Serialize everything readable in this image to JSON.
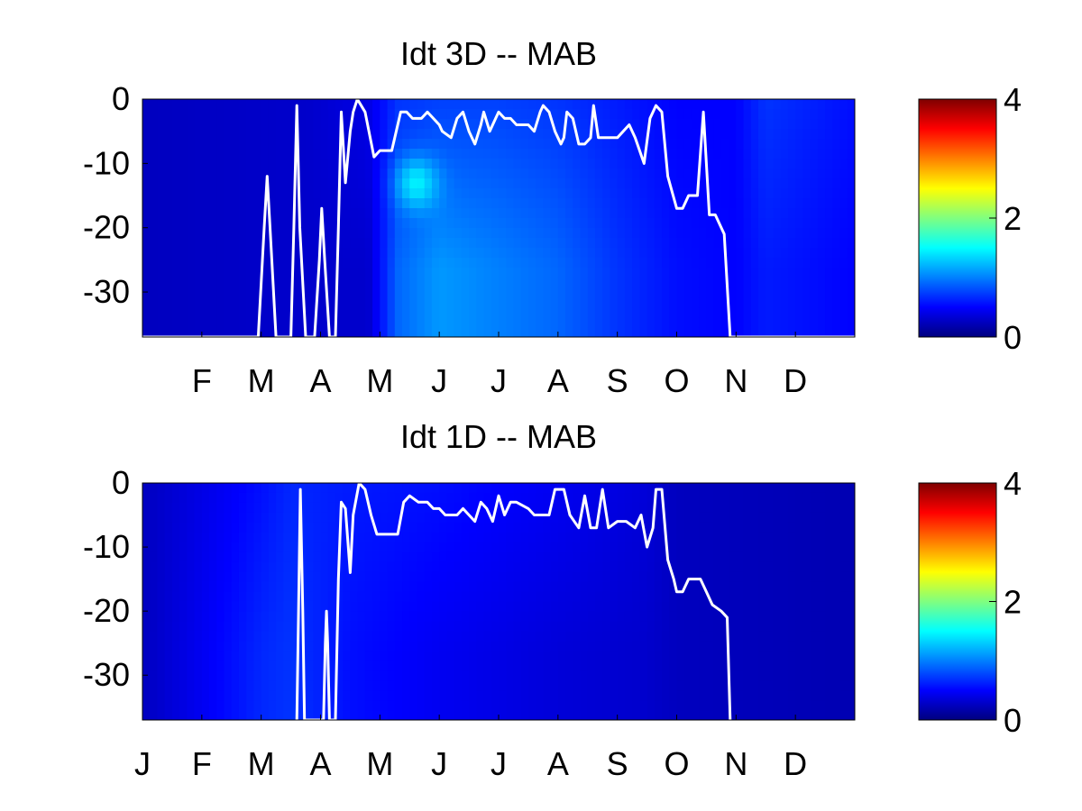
{
  "chart_data": [
    {
      "type": "heatmap",
      "title": "Idt 3D    -- MAB",
      "xlabel": "",
      "ylabel": "",
      "x_tick_labels": [
        "F",
        "M",
        "A",
        "M",
        "J",
        "J",
        "A",
        "S",
        "O",
        "N",
        "D"
      ],
      "y_ticks": [
        0,
        -10,
        -20,
        -30
      ],
      "ylim": [
        -37,
        0
      ],
      "xlim": [
        0,
        12
      ],
      "colorbar": {
        "ticks": [
          0,
          2,
          4
        ],
        "range": [
          0,
          4
        ],
        "colormap": "jet"
      },
      "grid": false,
      "heat_profile": [
        {
          "month": 0.0,
          "surface": 0.25,
          "deep": 0.25
        },
        {
          "month": 2.8,
          "surface": 0.3,
          "deep": 0.3
        },
        {
          "month": 3.8,
          "surface": 0.4,
          "deep": 0.3
        },
        {
          "month": 4.3,
          "surface": 0.7,
          "deep": 0.9
        },
        {
          "month": 5.0,
          "surface": 0.75,
          "deep": 1.1
        },
        {
          "month": 6.0,
          "surface": 0.75,
          "deep": 1.0
        },
        {
          "month": 7.0,
          "surface": 0.7,
          "deep": 0.9
        },
        {
          "month": 8.0,
          "surface": 0.6,
          "deep": 0.7
        },
        {
          "month": 9.0,
          "surface": 0.5,
          "deep": 0.55
        },
        {
          "month": 10.0,
          "surface": 0.5,
          "deep": 0.5
        },
        {
          "month": 10.5,
          "surface": 0.7,
          "deep": 0.6
        },
        {
          "month": 12.0,
          "surface": 0.55,
          "deep": 0.5
        }
      ],
      "hotspot": {
        "month": 4.6,
        "depth": -13,
        "value": 1.6
      },
      "line": {
        "name": "",
        "color": "#ffffff",
        "points": [
          [
            0.0,
            -37
          ],
          [
            1.95,
            -37
          ],
          [
            2.05,
            -20
          ],
          [
            2.1,
            -12
          ],
          [
            2.15,
            -20
          ],
          [
            2.25,
            -37
          ],
          [
            2.5,
            -37
          ],
          [
            2.55,
            -20
          ],
          [
            2.6,
            -1
          ],
          [
            2.65,
            -20
          ],
          [
            2.75,
            -37
          ],
          [
            2.9,
            -37
          ],
          [
            2.98,
            -25
          ],
          [
            3.02,
            -17
          ],
          [
            3.07,
            -25
          ],
          [
            3.15,
            -37
          ],
          [
            3.25,
            -37
          ],
          [
            3.3,
            -20
          ],
          [
            3.35,
            -2
          ],
          [
            3.42,
            -13
          ],
          [
            3.5,
            -5
          ],
          [
            3.55,
            -2
          ],
          [
            3.62,
            0
          ],
          [
            3.75,
            -2
          ],
          [
            3.9,
            -9
          ],
          [
            4.0,
            -8
          ],
          [
            4.2,
            -8
          ],
          [
            4.35,
            -2
          ],
          [
            4.45,
            -2
          ],
          [
            4.55,
            -3
          ],
          [
            4.7,
            -3
          ],
          [
            4.8,
            -2
          ],
          [
            4.9,
            -3
          ],
          [
            5.0,
            -4
          ],
          [
            5.05,
            -5
          ],
          [
            5.2,
            -6
          ],
          [
            5.3,
            -3
          ],
          [
            5.4,
            -2
          ],
          [
            5.5,
            -5
          ],
          [
            5.6,
            -7
          ],
          [
            5.7,
            -4
          ],
          [
            5.75,
            -2
          ],
          [
            5.85,
            -5
          ],
          [
            5.95,
            -3
          ],
          [
            6.0,
            -2
          ],
          [
            6.1,
            -3
          ],
          [
            6.2,
            -3
          ],
          [
            6.3,
            -4
          ],
          [
            6.5,
            -4
          ],
          [
            6.6,
            -5
          ],
          [
            6.7,
            -2
          ],
          [
            6.75,
            -1
          ],
          [
            6.85,
            -2
          ],
          [
            6.95,
            -5
          ],
          [
            7.05,
            -7
          ],
          [
            7.1,
            -6
          ],
          [
            7.15,
            -2
          ],
          [
            7.25,
            -3
          ],
          [
            7.35,
            -7
          ],
          [
            7.45,
            -7
          ],
          [
            7.55,
            -6
          ],
          [
            7.6,
            -1
          ],
          [
            7.68,
            -6
          ],
          [
            7.8,
            -6
          ],
          [
            8.0,
            -6
          ],
          [
            8.2,
            -4
          ],
          [
            8.3,
            -6
          ],
          [
            8.45,
            -10
          ],
          [
            8.55,
            -3
          ],
          [
            8.65,
            -1
          ],
          [
            8.75,
            -2
          ],
          [
            8.85,
            -12
          ],
          [
            9.0,
            -17
          ],
          [
            9.1,
            -17
          ],
          [
            9.2,
            -15
          ],
          [
            9.35,
            -15
          ],
          [
            9.45,
            -2
          ],
          [
            9.55,
            -18
          ],
          [
            9.65,
            -18
          ],
          [
            9.8,
            -21
          ],
          [
            9.9,
            -37
          ],
          [
            12.0,
            -37
          ]
        ]
      }
    },
    {
      "type": "heatmap",
      "title": "Idt 1D    -- MAB",
      "xlabel": "",
      "ylabel": "",
      "x_tick_labels": [
        "J",
        "F",
        "M",
        "A",
        "M",
        "J",
        "J",
        "A",
        "S",
        "O",
        "N",
        "D"
      ],
      "y_ticks": [
        0,
        -10,
        -20,
        -30
      ],
      "ylim": [
        -37,
        0
      ],
      "xlim": [
        0,
        12
      ],
      "colorbar": {
        "ticks": [
          0,
          2,
          4
        ],
        "range": [
          0,
          4
        ],
        "colormap": "jet"
      },
      "grid": false,
      "heat_profile": [
        {
          "month": 0.0,
          "surface": 0.25,
          "deep": 0.25
        },
        {
          "month": 1.0,
          "surface": 0.4,
          "deep": 0.45
        },
        {
          "month": 2.0,
          "surface": 0.55,
          "deep": 0.65
        },
        {
          "month": 2.5,
          "surface": 0.65,
          "deep": 0.7
        },
        {
          "month": 3.5,
          "surface": 0.6,
          "deep": 0.55
        },
        {
          "month": 5.0,
          "surface": 0.55,
          "deep": 0.45
        },
        {
          "month": 7.0,
          "surface": 0.45,
          "deep": 0.35
        },
        {
          "month": 8.5,
          "surface": 0.35,
          "deep": 0.3
        },
        {
          "month": 9.0,
          "surface": 0.25,
          "deep": 0.25
        },
        {
          "month": 12.0,
          "surface": 0.2,
          "deep": 0.2
        }
      ],
      "hotspot": null,
      "line": {
        "name": "",
        "color": "#ffffff",
        "points": [
          [
            2.6,
            -37
          ],
          [
            2.63,
            -20
          ],
          [
            2.66,
            -1
          ],
          [
            2.7,
            -20
          ],
          [
            2.73,
            -37
          ],
          [
            3.05,
            -37
          ],
          [
            3.08,
            -25
          ],
          [
            3.1,
            -20
          ],
          [
            3.12,
            -25
          ],
          [
            3.15,
            -37
          ],
          [
            3.25,
            -37
          ],
          [
            3.3,
            -15
          ],
          [
            3.35,
            -3
          ],
          [
            3.42,
            -4
          ],
          [
            3.5,
            -14
          ],
          [
            3.55,
            -5
          ],
          [
            3.65,
            0
          ],
          [
            3.75,
            -1
          ],
          [
            3.85,
            -5
          ],
          [
            3.95,
            -8
          ],
          [
            4.1,
            -8
          ],
          [
            4.3,
            -8
          ],
          [
            4.4,
            -3
          ],
          [
            4.5,
            -2
          ],
          [
            4.65,
            -3
          ],
          [
            4.8,
            -3
          ],
          [
            4.9,
            -4
          ],
          [
            5.0,
            -4
          ],
          [
            5.1,
            -5
          ],
          [
            5.3,
            -5
          ],
          [
            5.4,
            -4
          ],
          [
            5.5,
            -5
          ],
          [
            5.6,
            -6
          ],
          [
            5.7,
            -3
          ],
          [
            5.8,
            -4
          ],
          [
            5.9,
            -6
          ],
          [
            6.0,
            -2
          ],
          [
            6.1,
            -5
          ],
          [
            6.2,
            -3
          ],
          [
            6.3,
            -3
          ],
          [
            6.5,
            -4
          ],
          [
            6.6,
            -5
          ],
          [
            6.7,
            -5
          ],
          [
            6.85,
            -5
          ],
          [
            6.95,
            -1
          ],
          [
            7.1,
            -1
          ],
          [
            7.2,
            -5
          ],
          [
            7.35,
            -7
          ],
          [
            7.45,
            -2
          ],
          [
            7.55,
            -7
          ],
          [
            7.65,
            -7
          ],
          [
            7.75,
            -1
          ],
          [
            7.85,
            -7
          ],
          [
            8.0,
            -6
          ],
          [
            8.15,
            -6
          ],
          [
            8.3,
            -7
          ],
          [
            8.4,
            -5
          ],
          [
            8.5,
            -10
          ],
          [
            8.6,
            -7
          ],
          [
            8.65,
            -1
          ],
          [
            8.75,
            -1
          ],
          [
            8.85,
            -12
          ],
          [
            8.95,
            -15
          ],
          [
            9.0,
            -17
          ],
          [
            9.1,
            -17
          ],
          [
            9.2,
            -15
          ],
          [
            9.4,
            -15
          ],
          [
            9.5,
            -17
          ],
          [
            9.6,
            -19
          ],
          [
            9.75,
            -20
          ],
          [
            9.85,
            -21
          ],
          [
            9.9,
            -37
          ]
        ]
      }
    }
  ]
}
